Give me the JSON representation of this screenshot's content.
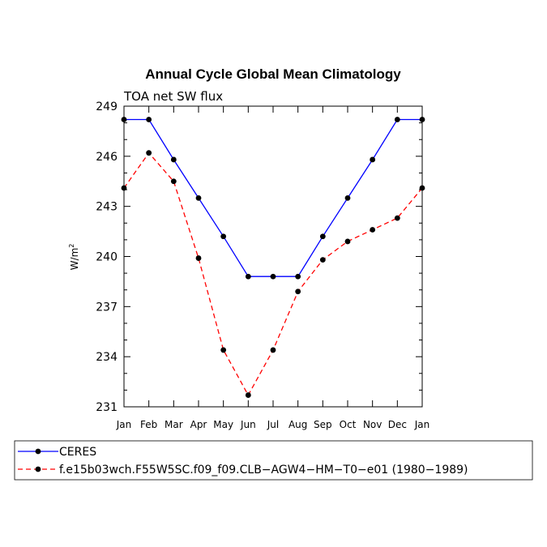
{
  "chart_data": {
    "type": "line",
    "title": "Annual Cycle Global Mean Climatology",
    "subtitle": "TOA net SW flux",
    "xlabel": "",
    "ylabel": "W/m",
    "ylabel_superscript": "2",
    "categories": [
      "Jan",
      "Feb",
      "Mar",
      "Apr",
      "May",
      "Jun",
      "Jul",
      "Aug",
      "Sep",
      "Oct",
      "Nov",
      "Dec",
      "Jan"
    ],
    "ylim": [
      231,
      249
    ],
    "yticks": [
      231,
      234,
      237,
      240,
      243,
      246,
      249
    ],
    "series": [
      {
        "name": "CERES",
        "color": "#0000ff",
        "dash": "solid",
        "values": [
          248.2,
          248.2,
          245.8,
          243.5,
          241.2,
          238.8,
          238.8,
          238.8,
          241.2,
          243.5,
          245.8,
          248.2,
          248.2
        ]
      },
      {
        "name": "f.e15b03wch.F55W5SC.f09_f09.CLB−AGW4−HM−T0−e01 (1980−1989)",
        "color": "#ff0000",
        "dash": "dashed",
        "values": [
          244.1,
          246.2,
          244.5,
          239.9,
          234.4,
          231.7,
          234.4,
          237.9,
          239.8,
          240.9,
          241.6,
          242.3,
          244.1
        ]
      }
    ],
    "legend_position": "bottom"
  }
}
